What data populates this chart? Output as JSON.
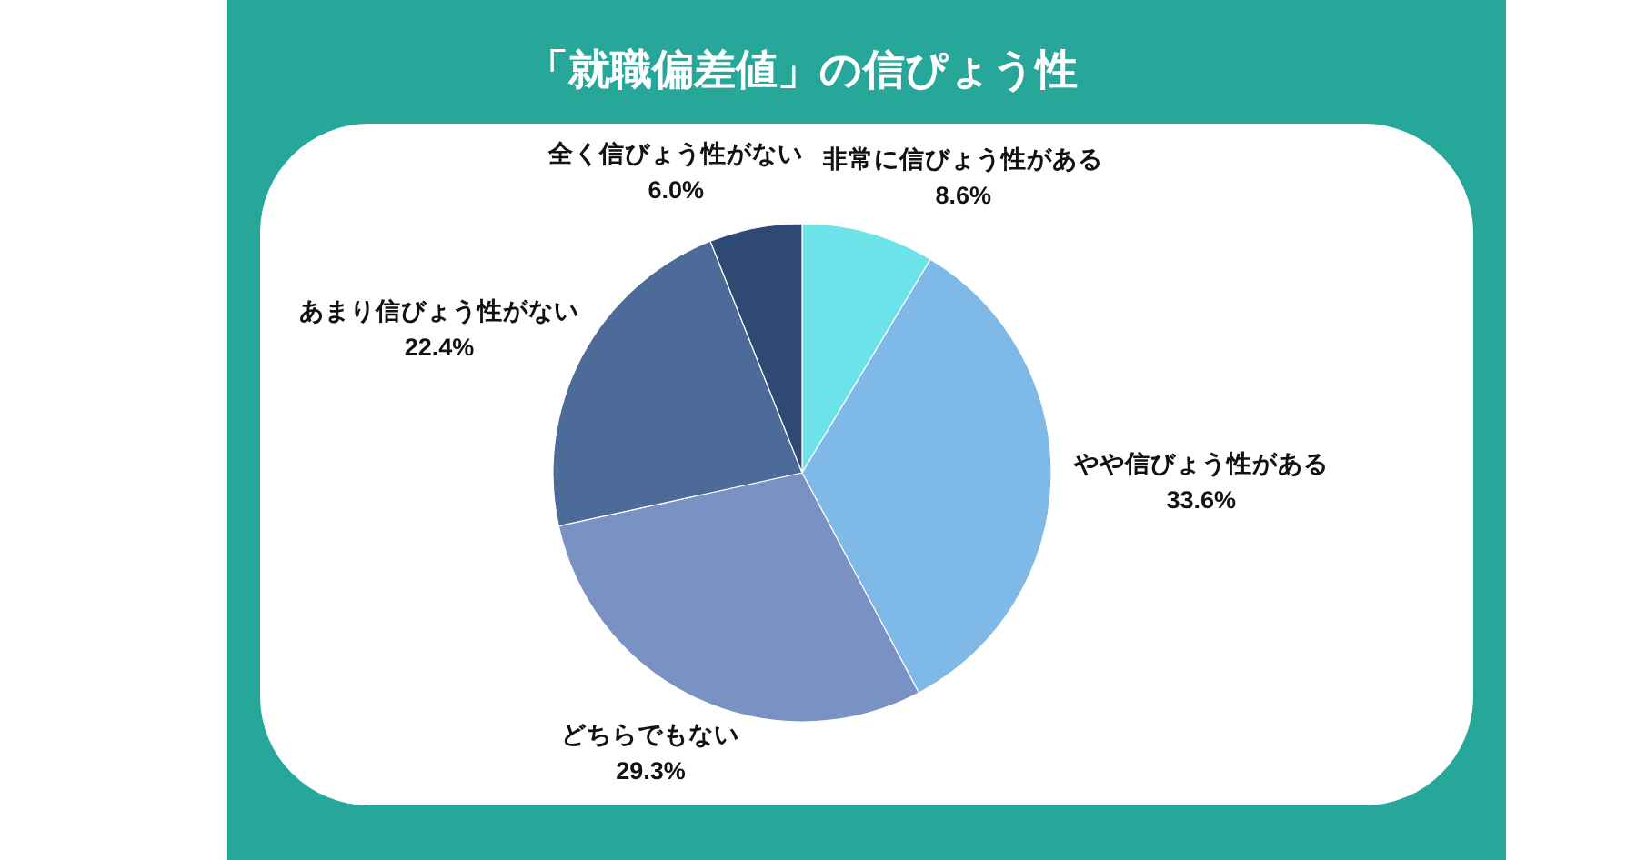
{
  "chart_data": {
    "type": "pie",
    "title": "「就職偏差値」の信ぴょう性",
    "categories": [
      "非常に信びょう性がある",
      "やや信びょう性がある",
      "どちらでもない",
      "あまり信びょう性がない",
      "全く信びょう性がない"
    ],
    "values": [
      8.6,
      33.6,
      29.3,
      22.4,
      6.0
    ],
    "value_labels": [
      "8.6%",
      "33.6%",
      "29.3%",
      "22.4%",
      "6.0%"
    ],
    "colors": [
      "#6ce3e8",
      "#7fb9e8",
      "#7a91c4",
      "#4d6b99",
      "#2e4a74"
    ]
  }
}
